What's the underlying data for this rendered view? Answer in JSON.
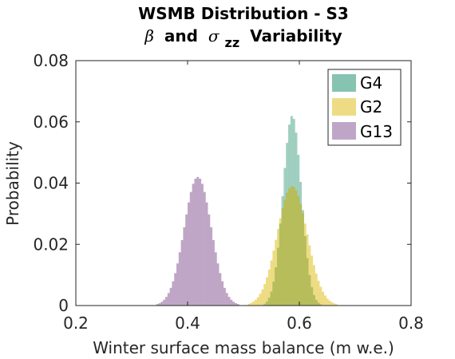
{
  "chart_data": {
    "type": "bar",
    "title": "WSMB Distribution - S3",
    "subtitle": {
      "beta": "β",
      "and": "and",
      "sigma": "σ",
      "sigma_subscript": "zz",
      "rest": "Variability"
    },
    "xlabel": "Winter surface mass balance (m w.e.)",
    "ylabel": "Probability",
    "xlim": [
      0.2,
      0.8
    ],
    "ylim": [
      0,
      0.08
    ],
    "xticks": [
      0.2,
      0.4,
      0.6,
      0.8
    ],
    "xtick_labels": [
      "0.2",
      "0.4",
      "0.6",
      "0.8"
    ],
    "yticks": [
      0,
      0.02,
      0.04,
      0.06,
      0.08
    ],
    "ytick_labels": [
      "0",
      "0.02",
      "0.04",
      "0.06",
      "0.08"
    ],
    "grid": false,
    "legend_position": "top-right",
    "series": [
      {
        "name": "G4",
        "mean": 0.587,
        "std": 0.0162,
        "peak": 0.062,
        "color": "#86c3b0"
      },
      {
        "name": "G2",
        "mean": 0.587,
        "std": 0.0265,
        "peak": 0.039,
        "color": "#eedc84"
      },
      {
        "name": "G13",
        "mean": 0.418,
        "std": 0.0241,
        "peak": 0.042,
        "color": "#c0a6c6"
      }
    ],
    "bin_width": 0.004,
    "overlap_color": "#b6bd5a"
  }
}
